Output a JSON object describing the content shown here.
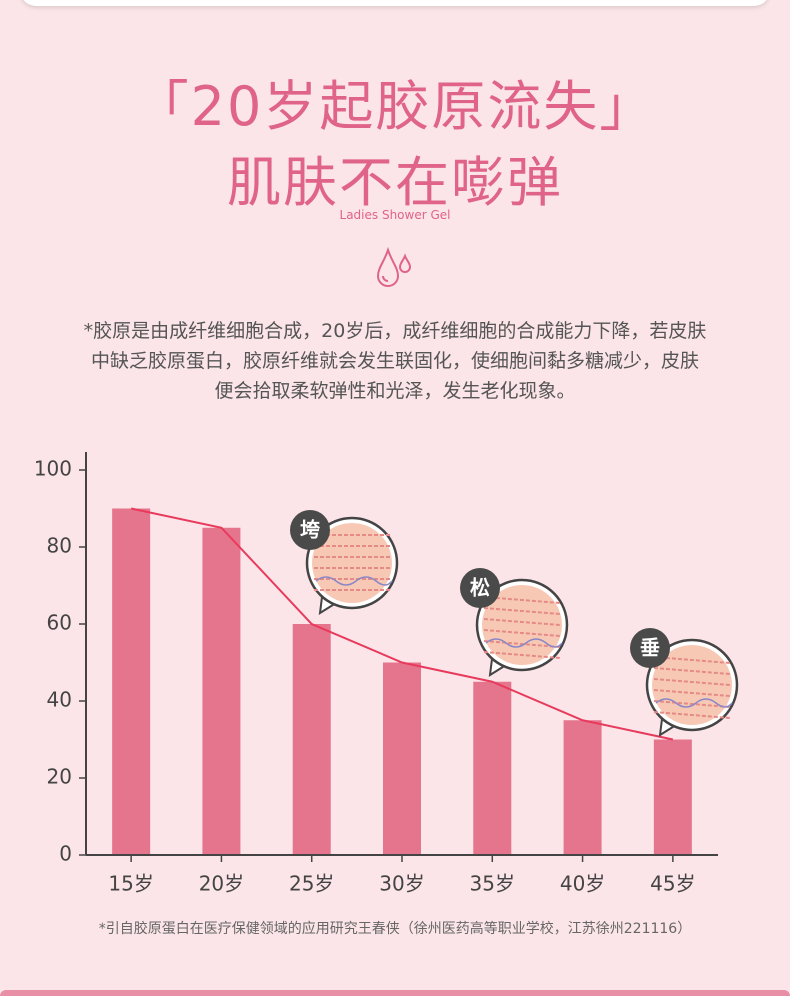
{
  "header": {
    "title_lines": [
      "「20岁起胶原流失」",
      "肌肤不在嘭弹"
    ],
    "subtitle": "Ladies Shower Gel"
  },
  "description": [
    "*胶原是由成纤维细胞合成，20岁后，成纤维细胞的合成能力下降，若皮肤",
    "中缺乏胶原蛋白，胶原纤维就会发生联固化，使细胞间黏多糖减少，皮肤",
    "便会拾取柔软弹性和光泽，发生老化现象。"
  ],
  "chart_data": {
    "type": "bar",
    "categories": [
      "15岁",
      "20岁",
      "25岁",
      "30岁",
      "35岁",
      "40岁",
      "45岁"
    ],
    "values": [
      90,
      85,
      60,
      50,
      45,
      35,
      30
    ],
    "color": "#e5758d",
    "line_color": "#e83a5c",
    "ylim": [
      0,
      100
    ],
    "yticks": [
      0,
      20,
      40,
      60,
      80,
      100
    ],
    "annotations": [
      "垮",
      "松",
      "垂"
    ]
  },
  "footnote": "*引自胶原蛋白在医疗保健领域的应用研究王春侠（徐州医药高等职业学校，江苏徐州221116）"
}
